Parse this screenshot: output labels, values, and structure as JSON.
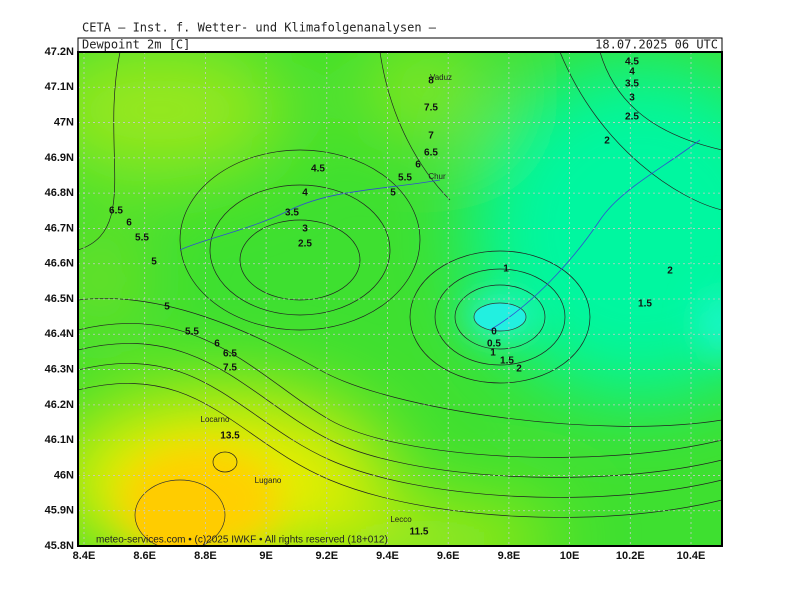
{
  "header": {
    "source": "CETA — Inst. f. Wetter- und Klimafolgenanalysen —"
  },
  "map": {
    "title": "Dewpoint 2m [C]",
    "time": "18.07.2025 06 UTC",
    "lat_ticks": [
      "47.2N",
      "47.1N",
      "47N",
      "46.9N",
      "46.8N",
      "46.7N",
      "46.6N",
      "46.5N",
      "46.4N",
      "46.3N",
      "46.2N",
      "46.1N",
      "46N",
      "45.9N",
      "45.8N"
    ],
    "lon_ticks": [
      "8.4E",
      "8.6E",
      "8.8E",
      "9E",
      "9.2E",
      "9.4E",
      "9.6E",
      "9.8E",
      "10E",
      "10.2E",
      "10.4E"
    ],
    "contour_labels": [
      "8",
      "7.5",
      "7",
      "6.5",
      "6",
      "5.5",
      "5",
      "4.5",
      "4",
      "3.5",
      "3",
      "2.5",
      "6.5",
      "6",
      "5.5",
      "5",
      "5",
      "5.5",
      "6",
      "6.5",
      "7.5",
      "1",
      "0",
      "0.5",
      "1",
      "1.5",
      "2",
      "2",
      "2.5",
      "3",
      "3.5",
      "4",
      "4.5",
      "2",
      "1.5",
      "13.5",
      "11.5"
    ],
    "places": [
      "Vaduz",
      "Chur",
      "Locarno",
      "Lugano",
      "Lecco"
    ],
    "credit": "meteo-services.com • (c)2025 IWKF • All rights reserved (18+012)"
  }
}
